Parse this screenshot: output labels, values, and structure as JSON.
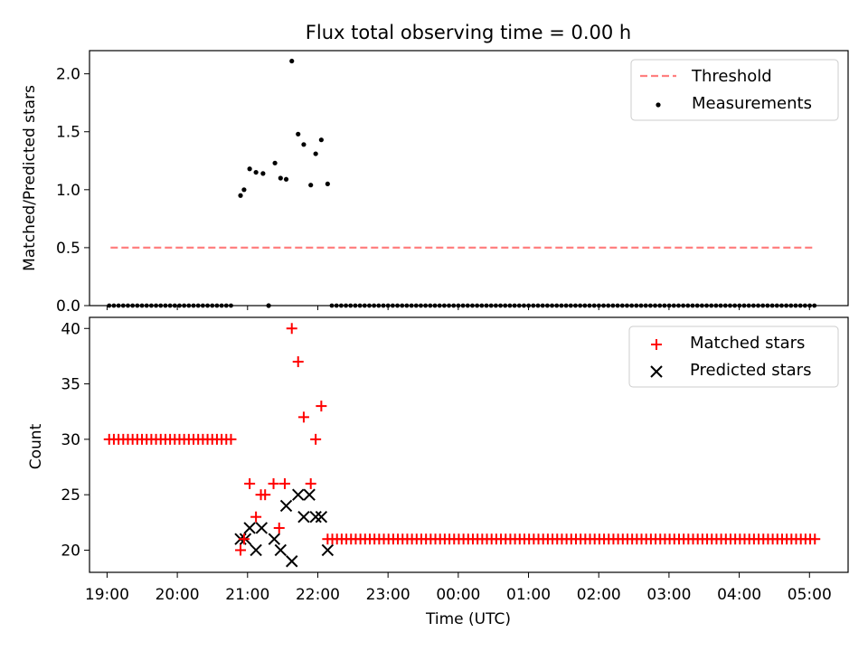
{
  "chart_data": [
    {
      "type": "scatter",
      "title": "Flux total observing time = 0.00 h",
      "xlabel": "",
      "ylabel": "Matched/Predicted stars",
      "xlim": [
        18.75,
        29.55
      ],
      "ylim": [
        0,
        2.2
      ],
      "yticks": [
        "0.0",
        "0.5",
        "1.0",
        "1.5",
        "2.0"
      ],
      "ytick_values": [
        0,
        0.5,
        1.0,
        1.5,
        2.0
      ],
      "legend": {
        "location": "top-right",
        "entries": [
          "Threshold",
          "Measurements"
        ]
      },
      "threshold": {
        "name": "Threshold",
        "y": 0.5,
        "x_start": 19.05,
        "x_end": 29.05,
        "color": "#ff8080"
      },
      "measurements": {
        "name": "Measurements",
        "color": "#000000",
        "x": [
          20.9,
          20.95,
          21.03,
          21.12,
          21.22,
          21.3,
          21.39,
          21.47,
          21.55,
          21.63,
          21.72,
          21.8,
          21.9,
          21.97,
          22.05,
          22.14
        ],
        "y": [
          0.95,
          1.0,
          1.18,
          1.15,
          1.14,
          0.0,
          1.23,
          1.1,
          1.09,
          2.11,
          1.48,
          1.39,
          1.04,
          1.31,
          1.43,
          1.05
        ],
        "zero_segments": [
          {
            "start": 19.03,
            "end": 20.83,
            "step": 0.0667
          },
          {
            "start": 22.2,
            "end": 29.08,
            "step": 0.0667
          }
        ]
      }
    },
    {
      "type": "scatter",
      "title": "",
      "xlabel": "Time (UTC)",
      "ylabel": "Count",
      "xlim": [
        18.75,
        29.55
      ],
      "ylim": [
        18,
        41
      ],
      "yticks": [
        "20",
        "25",
        "30",
        "35",
        "40"
      ],
      "ytick_values": [
        20,
        25,
        30,
        35,
        40
      ],
      "xticks": [
        "19:00",
        "20:00",
        "21:00",
        "22:00",
        "23:00",
        "00:00",
        "01:00",
        "02:00",
        "03:00",
        "04:00",
        "05:00"
      ],
      "xtick_values": [
        19,
        20,
        21,
        22,
        23,
        24,
        25,
        26,
        27,
        28,
        29
      ],
      "legend": {
        "location": "top-right",
        "entries": [
          "Matched stars",
          "Predicted stars"
        ]
      },
      "series": [
        {
          "name": "Matched stars",
          "marker": "+",
          "color": "#ff0000",
          "x": [
            20.9,
            20.95,
            21.03,
            21.12,
            21.19,
            21.25,
            21.37,
            21.45,
            21.53,
            21.63,
            21.72,
            21.8,
            21.9,
            21.97,
            22.05
          ],
          "y": [
            20,
            21,
            26,
            23,
            25,
            25,
            26,
            22,
            26,
            40,
            37,
            32,
            26,
            30,
            33
          ],
          "constant_segments": [
            {
              "start": 19.03,
              "end": 20.83,
              "step": 0.0667,
              "value": 30
            },
            {
              "start": 22.14,
              "end": 29.08,
              "step": 0.0667,
              "value": 21
            }
          ]
        },
        {
          "name": "Predicted stars",
          "marker": "x",
          "color": "#000000",
          "x": [
            20.9,
            20.97,
            21.03,
            21.12,
            21.2,
            21.38,
            21.47,
            21.55,
            21.63,
            21.72,
            21.8,
            21.88,
            21.97,
            22.05,
            22.14
          ],
          "y": [
            21,
            21,
            22,
            20,
            22,
            21,
            20,
            24,
            19,
            25,
            23,
            25,
            23,
            23,
            20
          ]
        }
      ]
    }
  ]
}
